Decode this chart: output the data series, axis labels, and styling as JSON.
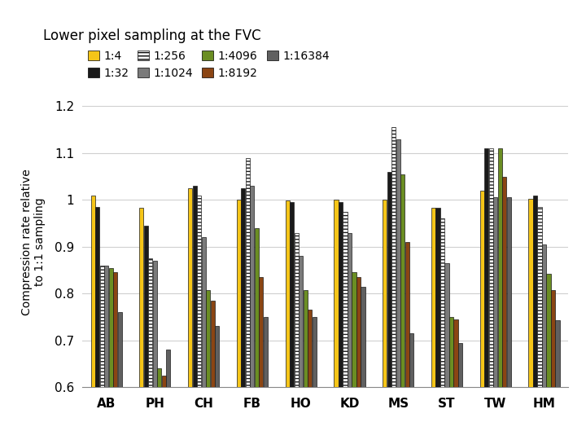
{
  "title": "Lower pixel sampling at the FVC",
  "ylabel": "Compression rate relative\nto 1:1 sampling",
  "categories": [
    "AB",
    "PH",
    "CH",
    "FB",
    "HO",
    "KD",
    "MS",
    "ST",
    "TW",
    "HM"
  ],
  "series_labels": [
    "1:4",
    "1:32",
    "1:256",
    "1:1024",
    "1:4096",
    "1:8192",
    "1:16384"
  ],
  "series_colors": [
    "#f5c518",
    "#1a1a1a",
    "#ffffff",
    "#7a7a7a",
    "#6b8e23",
    "#8b4513",
    "#606060"
  ],
  "series_hatch": [
    null,
    null,
    "---",
    null,
    null,
    null,
    null
  ],
  "data": {
    "1:4": [
      1.01,
      0.983,
      1.025,
      1.0,
      0.998,
      1.0,
      1.0,
      0.983,
      1.02,
      1.003
    ],
    "1:32": [
      0.985,
      0.945,
      1.03,
      1.025,
      0.995,
      0.995,
      1.06,
      0.983,
      1.11,
      1.01
    ],
    "1:256": [
      0.86,
      0.875,
      1.01,
      1.09,
      0.93,
      0.975,
      1.155,
      0.96,
      1.11,
      0.985
    ],
    "1:1024": [
      0.86,
      0.87,
      0.92,
      1.03,
      0.88,
      0.93,
      1.13,
      0.865,
      1.005,
      0.905
    ],
    "1:4096": [
      0.855,
      0.64,
      0.808,
      0.94,
      0.808,
      0.845,
      1.055,
      0.75,
      1.11,
      0.843
    ],
    "1:8192": [
      0.845,
      0.625,
      0.785,
      0.835,
      0.765,
      0.835,
      0.91,
      0.745,
      1.05,
      0.808
    ],
    "1:16384": [
      0.76,
      0.68,
      0.73,
      0.75,
      0.75,
      0.815,
      0.715,
      0.695,
      1.005,
      0.743
    ]
  },
  "ylim": [
    0.6,
    1.22
  ],
  "yticks": [
    0.6,
    0.7,
    0.8,
    0.9,
    1.0,
    1.1,
    1.2
  ],
  "background_color": "#ffffff",
  "grid_color": "#d0d0d0"
}
